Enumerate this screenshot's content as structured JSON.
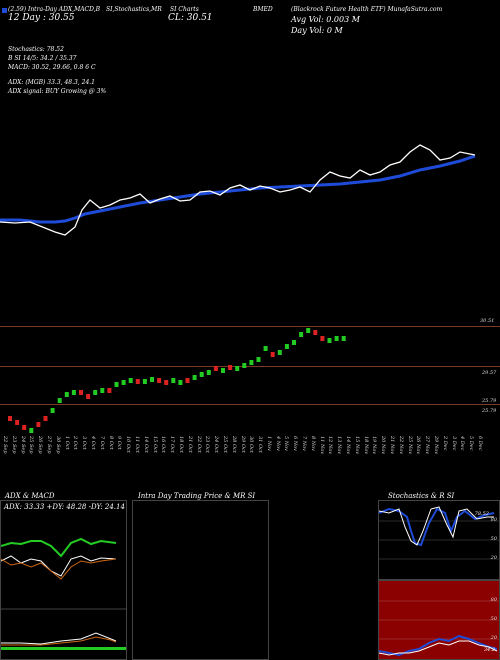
{
  "header": {
    "line1_left": "(2.59) Intra-Day ADX,MACD,B",
    "line1_stoch": "SI,Stochastics,MR",
    "line1_cr": "SI Charts",
    "line1_ticker": "BMED",
    "line1_right": "(Blackrock Future Health ETF) MunafaSutra.com",
    "day_high": "12 Day : 30.55",
    "close": "CL: 30.51",
    "avg_vol": "Avg Vol: 0.003 M",
    "day_vol": "Day Vol: 0   M"
  },
  "indicators": {
    "stochastics": "Stochastics: 78.52",
    "si": "B                   SI 14/5: 34.2  / 35.37",
    "macd": "MACD: 30.52, 29.66, 0.8          6    C",
    "adx": "ADX:                        (MGB) 33.3,  48.3,  24.1",
    "adx_signal": "ADX  signal:                         BUY Growing @ 3%"
  },
  "price_axis": {
    "top": "30.51",
    "mid": "29.57",
    "low1": "25.79",
    "low2": "25.79"
  },
  "dates": [
    "22 Sep",
    "23 Sep",
    "24 Sep",
    "25 Sep",
    "26 Sep",
    "27 Sep",
    "30 Sep",
    "1 Oct",
    "2 Oct",
    "3 Oct",
    "4 Oct",
    "7 Oct",
    "8 Oct",
    "9 Oct",
    "10 Oct",
    "11 Oct",
    "14 Oct",
    "15 Oct",
    "16 Oct",
    "17 Oct",
    "18 Oct",
    "21 Oct",
    "22 Oct",
    "23 Oct",
    "24 Oct",
    "25 Oct",
    "28 Oct",
    "29 Oct",
    "30 Oct",
    "31 Oct",
    "1 Nov",
    "4 Nov",
    "5 Nov",
    "6 Nov",
    "7 Nov",
    "8 Nov",
    "11 Nov",
    "12 Nov",
    "13 Nov",
    "14 Nov",
    "15 Nov",
    "18 Nov",
    "19 Nov",
    "20 Nov",
    "21 Nov",
    "22 Nov",
    "25 Nov",
    "26 Nov",
    "27 Nov",
    "29 Nov",
    "2 Dec",
    "3 Dec",
    "4 Dec",
    "5 Dec",
    "6 Dec"
  ],
  "panels": {
    "adx_title": "ADX  & MACD",
    "adx_values": "ADX: 33.33  +DY: 48.28  -DY: 24.14",
    "intraday_title": "Intra  Day Trading Price  & MR                       SI",
    "stoch_title": "Stochastics & R                  SI",
    "stoch_ticks": [
      "80",
      "50",
      "20"
    ],
    "rsi_ticks": [
      "80",
      "50",
      "20"
    ],
    "stoch_badge": "78.52",
    "rsi_badge": "34.2"
  },
  "colors": {
    "ema": "#1e4bd8",
    "price": "#ffffff",
    "up": "#22cc22",
    "down": "#dd2222",
    "rsi_bg": "#8b0000"
  }
}
